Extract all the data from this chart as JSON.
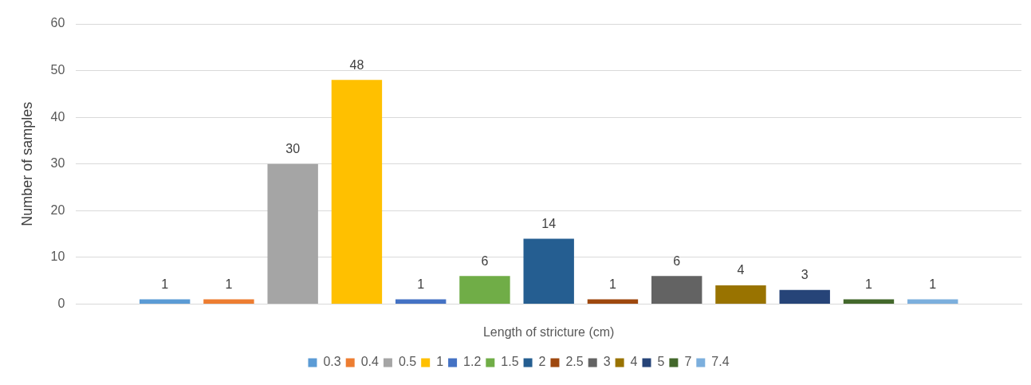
{
  "chart_data": {
    "type": "bar",
    "xlabel": "Length of stricture (cm)",
    "ylabel": "Number of samples",
    "categories": [
      null
    ],
    "series": [
      {
        "name": "0.3",
        "color": "#5b9bd5",
        "values": [
          1
        ]
      },
      {
        "name": "0.4",
        "color": "#ed7d31",
        "values": [
          1
        ]
      },
      {
        "name": "0.5",
        "color": "#a5a5a5",
        "values": [
          30
        ]
      },
      {
        "name": "1",
        "color": "#ffc000",
        "values": [
          48
        ]
      },
      {
        "name": "1.2",
        "color": "#4472c4",
        "values": [
          1
        ]
      },
      {
        "name": "1.5",
        "color": "#70ad47",
        "values": [
          6
        ]
      },
      {
        "name": "2",
        "color": "#255e91",
        "values": [
          14
        ]
      },
      {
        "name": "2.5",
        "color": "#9e480e",
        "values": [
          1
        ]
      },
      {
        "name": "3",
        "color": "#636363",
        "values": [
          6
        ]
      },
      {
        "name": "4",
        "color": "#997300",
        "values": [
          4
        ]
      },
      {
        "name": "5",
        "color": "#264478",
        "values": [
          3
        ]
      },
      {
        "name": "7",
        "color": "#43682b",
        "values": [
          1
        ]
      },
      {
        "name": "7.4",
        "color": "#7cafdd",
        "values": [
          1
        ]
      }
    ],
    "ylim": [
      0,
      60
    ],
    "yticks": [
      0,
      10,
      20,
      30,
      40,
      50,
      60
    ],
    "grid": "y",
    "legend": "bottom",
    "data_labels": true
  }
}
